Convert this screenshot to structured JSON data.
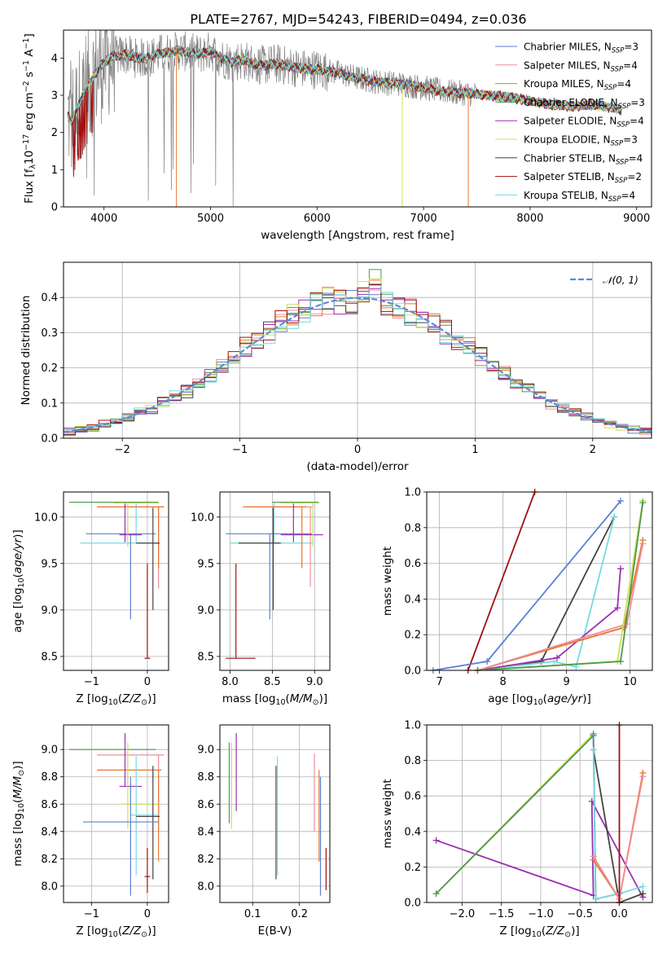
{
  "title": "PLATE=2767, MJD=54243, FIBERID=0494, z=0.036",
  "colors": {
    "chabrier_miles": "#5b7fd6",
    "salpeter_miles": "#ee8f9a",
    "kroupa_miles": "#e8772e",
    "chabrier_elodie": "#4a9a4a",
    "salpeter_elodie": "#9b30b0",
    "kroupa_elodie": "#cde05a",
    "chabrier_stelib": "#444444",
    "salpeter_stelib": "#a11010",
    "kroupa_stelib": "#74dbe0",
    "data": "#808080",
    "normal": "#5b8bd8"
  },
  "chart_data": [
    {
      "id": "spectrum",
      "type": "line",
      "xlabel": "wavelength [Angstrom, rest frame]",
      "ylabel": "Flux [f_λ10^-17 erg cm^-2 s^-1 A^-1]",
      "xlim": [
        3620,
        9140
      ],
      "ylim": [
        0,
        4.75
      ],
      "xticks": [
        4000,
        5000,
        6000,
        7000,
        8000,
        9000
      ],
      "yticks": [
        0,
        1,
        2,
        3,
        4
      ],
      "grid": false,
      "legend_position": "upper-right",
      "model_continuum": {
        "x": [
          3650,
          3700,
          3800,
          3900,
          4000,
          4100,
          4200,
          4300,
          4400,
          4500,
          4600,
          4700,
          4800,
          4900,
          5000,
          5100,
          5200,
          5300,
          5400,
          5500,
          5600,
          5700,
          5800,
          5900,
          6000,
          6200,
          6400,
          6600,
          6800,
          7000,
          7200,
          7400,
          7600,
          7800,
          8000,
          8200,
          8400,
          8600,
          8800,
          8850
        ],
        "y": [
          2.5,
          2.3,
          3.0,
          3.5,
          3.9,
          4.05,
          4.1,
          4.0,
          4.0,
          4.1,
          4.15,
          4.2,
          4.15,
          4.1,
          4.2,
          4.0,
          3.9,
          3.95,
          3.85,
          3.8,
          3.85,
          3.8,
          3.75,
          3.7,
          3.7,
          3.6,
          3.45,
          3.35,
          3.3,
          3.2,
          3.1,
          3.05,
          3.0,
          2.95,
          2.85,
          2.75,
          2.7,
          2.75,
          2.65,
          2.6
        ]
      },
      "series": [
        {
          "key": "chabrier_miles",
          "legend": "Chabrier MILES, N",
          "legend_sub": "SSP",
          "legend_tail": "=3"
        },
        {
          "key": "salpeter_miles",
          "legend": "Salpeter MILES, N",
          "legend_sub": "SSP",
          "legend_tail": "=4"
        },
        {
          "key": "kroupa_miles",
          "legend": "Kroupa MILES, N",
          "legend_sub": "SSP",
          "legend_tail": "=4"
        },
        {
          "key": "chabrier_elodie",
          "legend": "Chabrier ELODIE, N",
          "legend_sub": "SSP",
          "legend_tail": "=3"
        },
        {
          "key": "salpeter_elodie",
          "legend": "Salpeter ELODIE, N",
          "legend_sub": "SSP",
          "legend_tail": "=4"
        },
        {
          "key": "kroupa_elodie",
          "legend": "Kroupa ELODIE, N",
          "legend_sub": "SSP",
          "legend_tail": "=3"
        },
        {
          "key": "chabrier_stelib",
          "legend": "Chabrier STELIB, N",
          "legend_sub": "SSP",
          "legend_tail": "=4"
        },
        {
          "key": "salpeter_stelib",
          "legend": "Salpeter STELIB, N",
          "legend_sub": "SSP",
          "legend_tail": "=2"
        },
        {
          "key": "kroupa_stelib",
          "legend": "Kroupa STELIB, N",
          "legend_sub": "SSP",
          "legend_tail": "=4"
        }
      ]
    },
    {
      "id": "residuals",
      "type": "line",
      "xlabel": "(data-model)/error",
      "ylabel": "Normed distribution",
      "xlim": [
        -2.5,
        2.5
      ],
      "ylim": [
        0,
        0.5
      ],
      "xticks": [
        -2,
        -1,
        0,
        1,
        2
      ],
      "yticks": [
        0.0,
        0.1,
        0.2,
        0.3,
        0.4
      ],
      "grid": true,
      "legend_position": "upper-right",
      "normal_legend": "𝒩(0, 1)",
      "bin_width": 0.1
    },
    {
      "id": "age_vs_Z",
      "type": "scatter",
      "xlabel": "Z [log₁₀(Z/Z⊙)]",
      "ylabel": "age  [log₁₀(age/yr)]",
      "xlim": [
        -1.5,
        0.38
      ],
      "ylim": [
        8.35,
        10.27
      ],
      "xticks": [
        -1,
        0
      ],
      "yticks": [
        8.5,
        9.0,
        9.5,
        10.0
      ],
      "grid": true,
      "points": [
        {
          "s": "kroupa_stelib",
          "x": -0.2,
          "y": 9.72,
          "xlo": -1.2,
          "xhi": 0.22,
          "ylo": 9.72,
          "yhi": 10.16
        },
        {
          "s": "chabrier_miles",
          "x": -0.3,
          "y": 9.82,
          "xlo": -1.1,
          "xhi": 0.15,
          "ylo": 8.9,
          "yhi": 9.82
        },
        {
          "s": "salpeter_miles",
          "x": 0.2,
          "y": 10.11,
          "xlo": -0.9,
          "xhi": 0.3,
          "ylo": 9.23,
          "yhi": 10.11
        },
        {
          "s": "kroupa_miles",
          "x": 0.2,
          "y": 10.11,
          "xlo": -0.9,
          "xhi": 0.3,
          "ylo": 9.45,
          "yhi": 10.11
        },
        {
          "s": "chabrier_elodie",
          "x": -0.3,
          "y": 10.16,
          "xlo": -1.4,
          "xhi": 0.2,
          "ylo": 10.16,
          "yhi": 10.16
        },
        {
          "s": "salpeter_elodie",
          "x": -0.4,
          "y": 9.81,
          "xlo": -0.5,
          "xhi": -0.1,
          "ylo": 9.73,
          "yhi": 10.15
        },
        {
          "s": "kroupa_elodie",
          "x": -0.35,
          "y": 10.15,
          "xlo": -0.6,
          "xhi": 0.2,
          "ylo": 9.68,
          "yhi": 10.15
        },
        {
          "s": "chabrier_stelib",
          "x": 0.1,
          "y": 9.72,
          "xlo": -0.2,
          "xhi": 0.22,
          "ylo": 9.0,
          "yhi": 10.1
        },
        {
          "s": "salpeter_stelib",
          "x": 0.0,
          "y": 8.48,
          "xlo": -0.05,
          "xhi": 0.05,
          "ylo": 8.48,
          "yhi": 9.5
        }
      ]
    },
    {
      "id": "age_vs_mass",
      "type": "scatter",
      "xlabel": "mass [log₁₀(M/M⊙)]",
      "ylabel": "",
      "xlim": [
        7.88,
        9.18
      ],
      "ylim": [
        8.35,
        10.27
      ],
      "xticks": [
        8.0,
        8.5,
        9.0
      ],
      "yticks": [
        8.5,
        9.0,
        9.5,
        10.0
      ],
      "grid": true,
      "points": [
        {
          "s": "kroupa_stelib",
          "x": 8.52,
          "y": 9.72,
          "xlo": 8.0,
          "xhi": 8.98,
          "ylo": 9.72,
          "yhi": 10.16
        },
        {
          "s": "chabrier_miles",
          "x": 8.47,
          "y": 9.82,
          "xlo": 7.95,
          "xhi": 8.97,
          "ylo": 8.9,
          "yhi": 9.82
        },
        {
          "s": "salpeter_miles",
          "x": 8.95,
          "y": 10.11,
          "xlo": 8.2,
          "xhi": 8.98,
          "ylo": 9.25,
          "yhi": 10.11
        },
        {
          "s": "kroupa_miles",
          "x": 8.85,
          "y": 10.11,
          "xlo": 8.15,
          "xhi": 8.9,
          "ylo": 9.45,
          "yhi": 10.11
        },
        {
          "s": "chabrier_elodie",
          "x": 9.0,
          "y": 10.16,
          "xlo": 8.5,
          "xhi": 9.05,
          "ylo": 10.16,
          "yhi": 10.16
        },
        {
          "s": "salpeter_elodie",
          "x": 8.75,
          "y": 9.81,
          "xlo": 8.6,
          "xhi": 9.1,
          "ylo": 9.73,
          "yhi": 10.15
        },
        {
          "s": "kroupa_elodie",
          "x": 8.98,
          "y": 10.15,
          "xlo": 8.6,
          "xhi": 9.05,
          "ylo": 9.68,
          "yhi": 10.15
        },
        {
          "s": "chabrier_stelib",
          "x": 8.51,
          "y": 9.72,
          "xlo": 8.1,
          "xhi": 8.6,
          "ylo": 9.0,
          "yhi": 10.1
        },
        {
          "s": "salpeter_stelib",
          "x": 8.07,
          "y": 8.48,
          "xlo": 7.95,
          "xhi": 8.3,
          "ylo": 8.48,
          "yhi": 9.5
        }
      ]
    },
    {
      "id": "massweight_vs_age",
      "type": "line",
      "xlabel": "age  [log₁₀(age/yr)]",
      "ylabel": "mass weight",
      "xlim": [
        6.8,
        10.35
      ],
      "ylim": [
        0,
        1.0
      ],
      "xticks": [
        7,
        8,
        9,
        10
      ],
      "yticks": [
        0.0,
        0.2,
        0.4,
        0.6,
        0.8,
        1.0
      ],
      "grid": true,
      "series": [
        {
          "s": "salpeter_stelib",
          "x": [
            7.45,
            8.5
          ],
          "y": [
            0.0,
            1.0
          ]
        },
        {
          "s": "chabrier_miles",
          "x": [
            6.9,
            7.75,
            9.85
          ],
          "y": [
            0.0,
            0.05,
            0.95
          ]
        },
        {
          "s": "chabrier_stelib",
          "x": [
            7.6,
            8.6,
            9.75
          ],
          "y": [
            0.0,
            0.05,
            0.86
          ]
        },
        {
          "s": "kroupa_stelib",
          "x": [
            7.6,
            8.8,
            9.15,
            9.75
          ],
          "y": [
            0.0,
            0.05,
            0.02,
            0.86
          ]
        },
        {
          "s": "salpeter_elodie",
          "x": [
            7.6,
            8.85,
            9.8,
            9.85
          ],
          "y": [
            0.0,
            0.07,
            0.35,
            0.57
          ]
        },
        {
          "s": "kroupa_miles",
          "x": [
            7.6,
            9.9,
            10.2
          ],
          "y": [
            0.0,
            0.24,
            0.73
          ]
        },
        {
          "s": "salpeter_miles",
          "x": [
            7.6,
            9.95,
            10.2
          ],
          "y": [
            0.0,
            0.26,
            0.71
          ]
        },
        {
          "s": "kroupa_elodie",
          "x": [
            7.6,
            9.8,
            10.2
          ],
          "y": [
            0.0,
            0.05,
            0.95
          ]
        },
        {
          "s": "chabrier_elodie",
          "x": [
            7.6,
            9.85,
            10.2
          ],
          "y": [
            0.0,
            0.05,
            0.94
          ]
        }
      ]
    },
    {
      "id": "mass_vs_Z",
      "type": "scatter",
      "xlabel": "Z [log₁₀(Z/Z⊙)]",
      "ylabel": "mass [log₁₀(M/M⊙)]",
      "xlim": [
        -1.5,
        0.38
      ],
      "ylim": [
        7.88,
        9.18
      ],
      "xticks": [
        -1,
        0
      ],
      "yticks": [
        8.0,
        8.2,
        8.4,
        8.6,
        8.8,
        9.0
      ],
      "grid": true,
      "points": [
        {
          "s": "chabrier_elodie",
          "x": -0.3,
          "y": 9.0,
          "xlo": -1.4,
          "xhi": 0.15,
          "ylo": 9.0,
          "yhi": 9.0
        },
        {
          "s": "salpeter_miles",
          "x": 0.2,
          "y": 8.96,
          "xlo": -0.9,
          "xhi": 0.3,
          "ylo": 8.4,
          "yhi": 8.96
        },
        {
          "s": "kroupa_miles",
          "x": 0.2,
          "y": 8.85,
          "xlo": -0.9,
          "xhi": 0.25,
          "ylo": 8.18,
          "yhi": 8.85
        },
        {
          "s": "salpeter_elodie",
          "x": -0.4,
          "y": 8.73,
          "xlo": -0.5,
          "xhi": -0.1,
          "ylo": 8.73,
          "yhi": 9.12
        },
        {
          "s": "kroupa_elodie",
          "x": -0.35,
          "y": 8.6,
          "xlo": -0.45,
          "xhi": 0.2,
          "ylo": 8.42,
          "yhi": 9.05
        },
        {
          "s": "kroupa_stelib",
          "x": -0.2,
          "y": 8.52,
          "xlo": -0.3,
          "xhi": 0.22,
          "ylo": 8.08,
          "yhi": 8.95
        },
        {
          "s": "chabrier_stelib",
          "x": 0.1,
          "y": 8.51,
          "xlo": -0.2,
          "xhi": 0.22,
          "ylo": 8.05,
          "yhi": 8.88
        },
        {
          "s": "chabrier_miles",
          "x": -0.3,
          "y": 8.47,
          "xlo": -1.15,
          "xhi": 0.2,
          "ylo": 7.93,
          "yhi": 8.8
        },
        {
          "s": "salpeter_stelib",
          "x": 0.0,
          "y": 8.07,
          "xlo": -0.05,
          "xhi": 0.05,
          "ylo": 7.95,
          "yhi": 8.28
        }
      ]
    },
    {
      "id": "mass_vs_ebv",
      "type": "scatter",
      "xlabel": "E(B-V)",
      "ylabel": "",
      "xlim": [
        0.03,
        0.265
      ],
      "ylim": [
        7.88,
        9.18
      ],
      "xticks": [
        0.1,
        0.2
      ],
      "yticks": [
        8.0,
        8.2,
        8.4,
        8.6,
        8.8,
        9.0
      ],
      "grid": true,
      "points": [
        {
          "s": "chabrier_elodie",
          "x": 0.05,
          "y": 8.6,
          "ylo": 8.46,
          "yhi": 9.05
        },
        {
          "s": "kroupa_elodie",
          "x": 0.055,
          "y": 8.6,
          "ylo": 8.42,
          "yhi": 9.05
        },
        {
          "s": "salpeter_elodie",
          "x": 0.065,
          "y": 8.7,
          "ylo": 8.55,
          "yhi": 9.12
        },
        {
          "s": "chabrier_stelib",
          "x": 0.15,
          "y": 8.5,
          "ylo": 8.05,
          "yhi": 8.88
        },
        {
          "s": "kroupa_stelib",
          "x": 0.153,
          "y": 8.5,
          "ylo": 8.08,
          "yhi": 8.95
        },
        {
          "s": "salpeter_miles",
          "x": 0.232,
          "y": 8.7,
          "ylo": 8.4,
          "yhi": 8.97
        },
        {
          "s": "kroupa_miles",
          "x": 0.242,
          "y": 8.55,
          "ylo": 8.18,
          "yhi": 8.85
        },
        {
          "s": "chabrier_miles",
          "x": 0.245,
          "y": 8.4,
          "ylo": 7.93,
          "yhi": 8.8
        },
        {
          "s": "salpeter_stelib",
          "x": 0.257,
          "y": 8.1,
          "ylo": 7.97,
          "yhi": 8.28
        }
      ]
    },
    {
      "id": "massweight_vs_Z",
      "type": "line",
      "xlabel": "Z [log₁₀(Z/Z⊙)]",
      "ylabel": "mass weight",
      "xlim": [
        -2.45,
        0.42
      ],
      "ylim": [
        0,
        1.0
      ],
      "xticks": [
        -2.0,
        -1.5,
        -1.0,
        -0.5,
        0.0
      ],
      "yticks": [
        0.0,
        0.2,
        0.4,
        0.6,
        0.8,
        1.0
      ],
      "grid": true,
      "series": [
        {
          "s": "salpeter_elodie",
          "x": [
            -2.33,
            -0.33,
            -0.35,
            0.3
          ],
          "y": [
            0.35,
            0.04,
            0.57,
            0.03
          ]
        },
        {
          "s": "kroupa_elodie",
          "x": [
            -2.33,
            -0.33,
            -0.3
          ],
          "y": [
            0.05,
            0.95,
            0.02
          ]
        },
        {
          "s": "chabrier_elodie",
          "x": [
            -2.33,
            -0.33,
            -0.3
          ],
          "y": [
            0.05,
            0.94,
            0.02
          ]
        },
        {
          "s": "chabrier_miles",
          "x": [
            -0.33,
            -0.3,
            0.0
          ],
          "y": [
            0.95,
            0.02,
            0.05
          ]
        },
        {
          "s": "chabrier_stelib",
          "x": [
            -0.33,
            0.0,
            0.3
          ],
          "y": [
            0.86,
            0.0,
            0.05
          ]
        },
        {
          "s": "kroupa_stelib",
          "x": [
            -0.33,
            -0.3,
            0.0,
            0.3
          ],
          "y": [
            0.86,
            0.02,
            0.05,
            0.09
          ]
        },
        {
          "s": "kroupa_miles",
          "x": [
            -0.33,
            0.0,
            0.3
          ],
          "y": [
            0.24,
            0.02,
            0.73
          ]
        },
        {
          "s": "salpeter_miles",
          "x": [
            -0.33,
            0.0,
            0.3
          ],
          "y": [
            0.26,
            0.02,
            0.71
          ]
        },
        {
          "s": "salpeter_stelib",
          "x": [
            0.0,
            0.0
          ],
          "y": [
            0.0,
            1.0
          ]
        }
      ]
    }
  ]
}
